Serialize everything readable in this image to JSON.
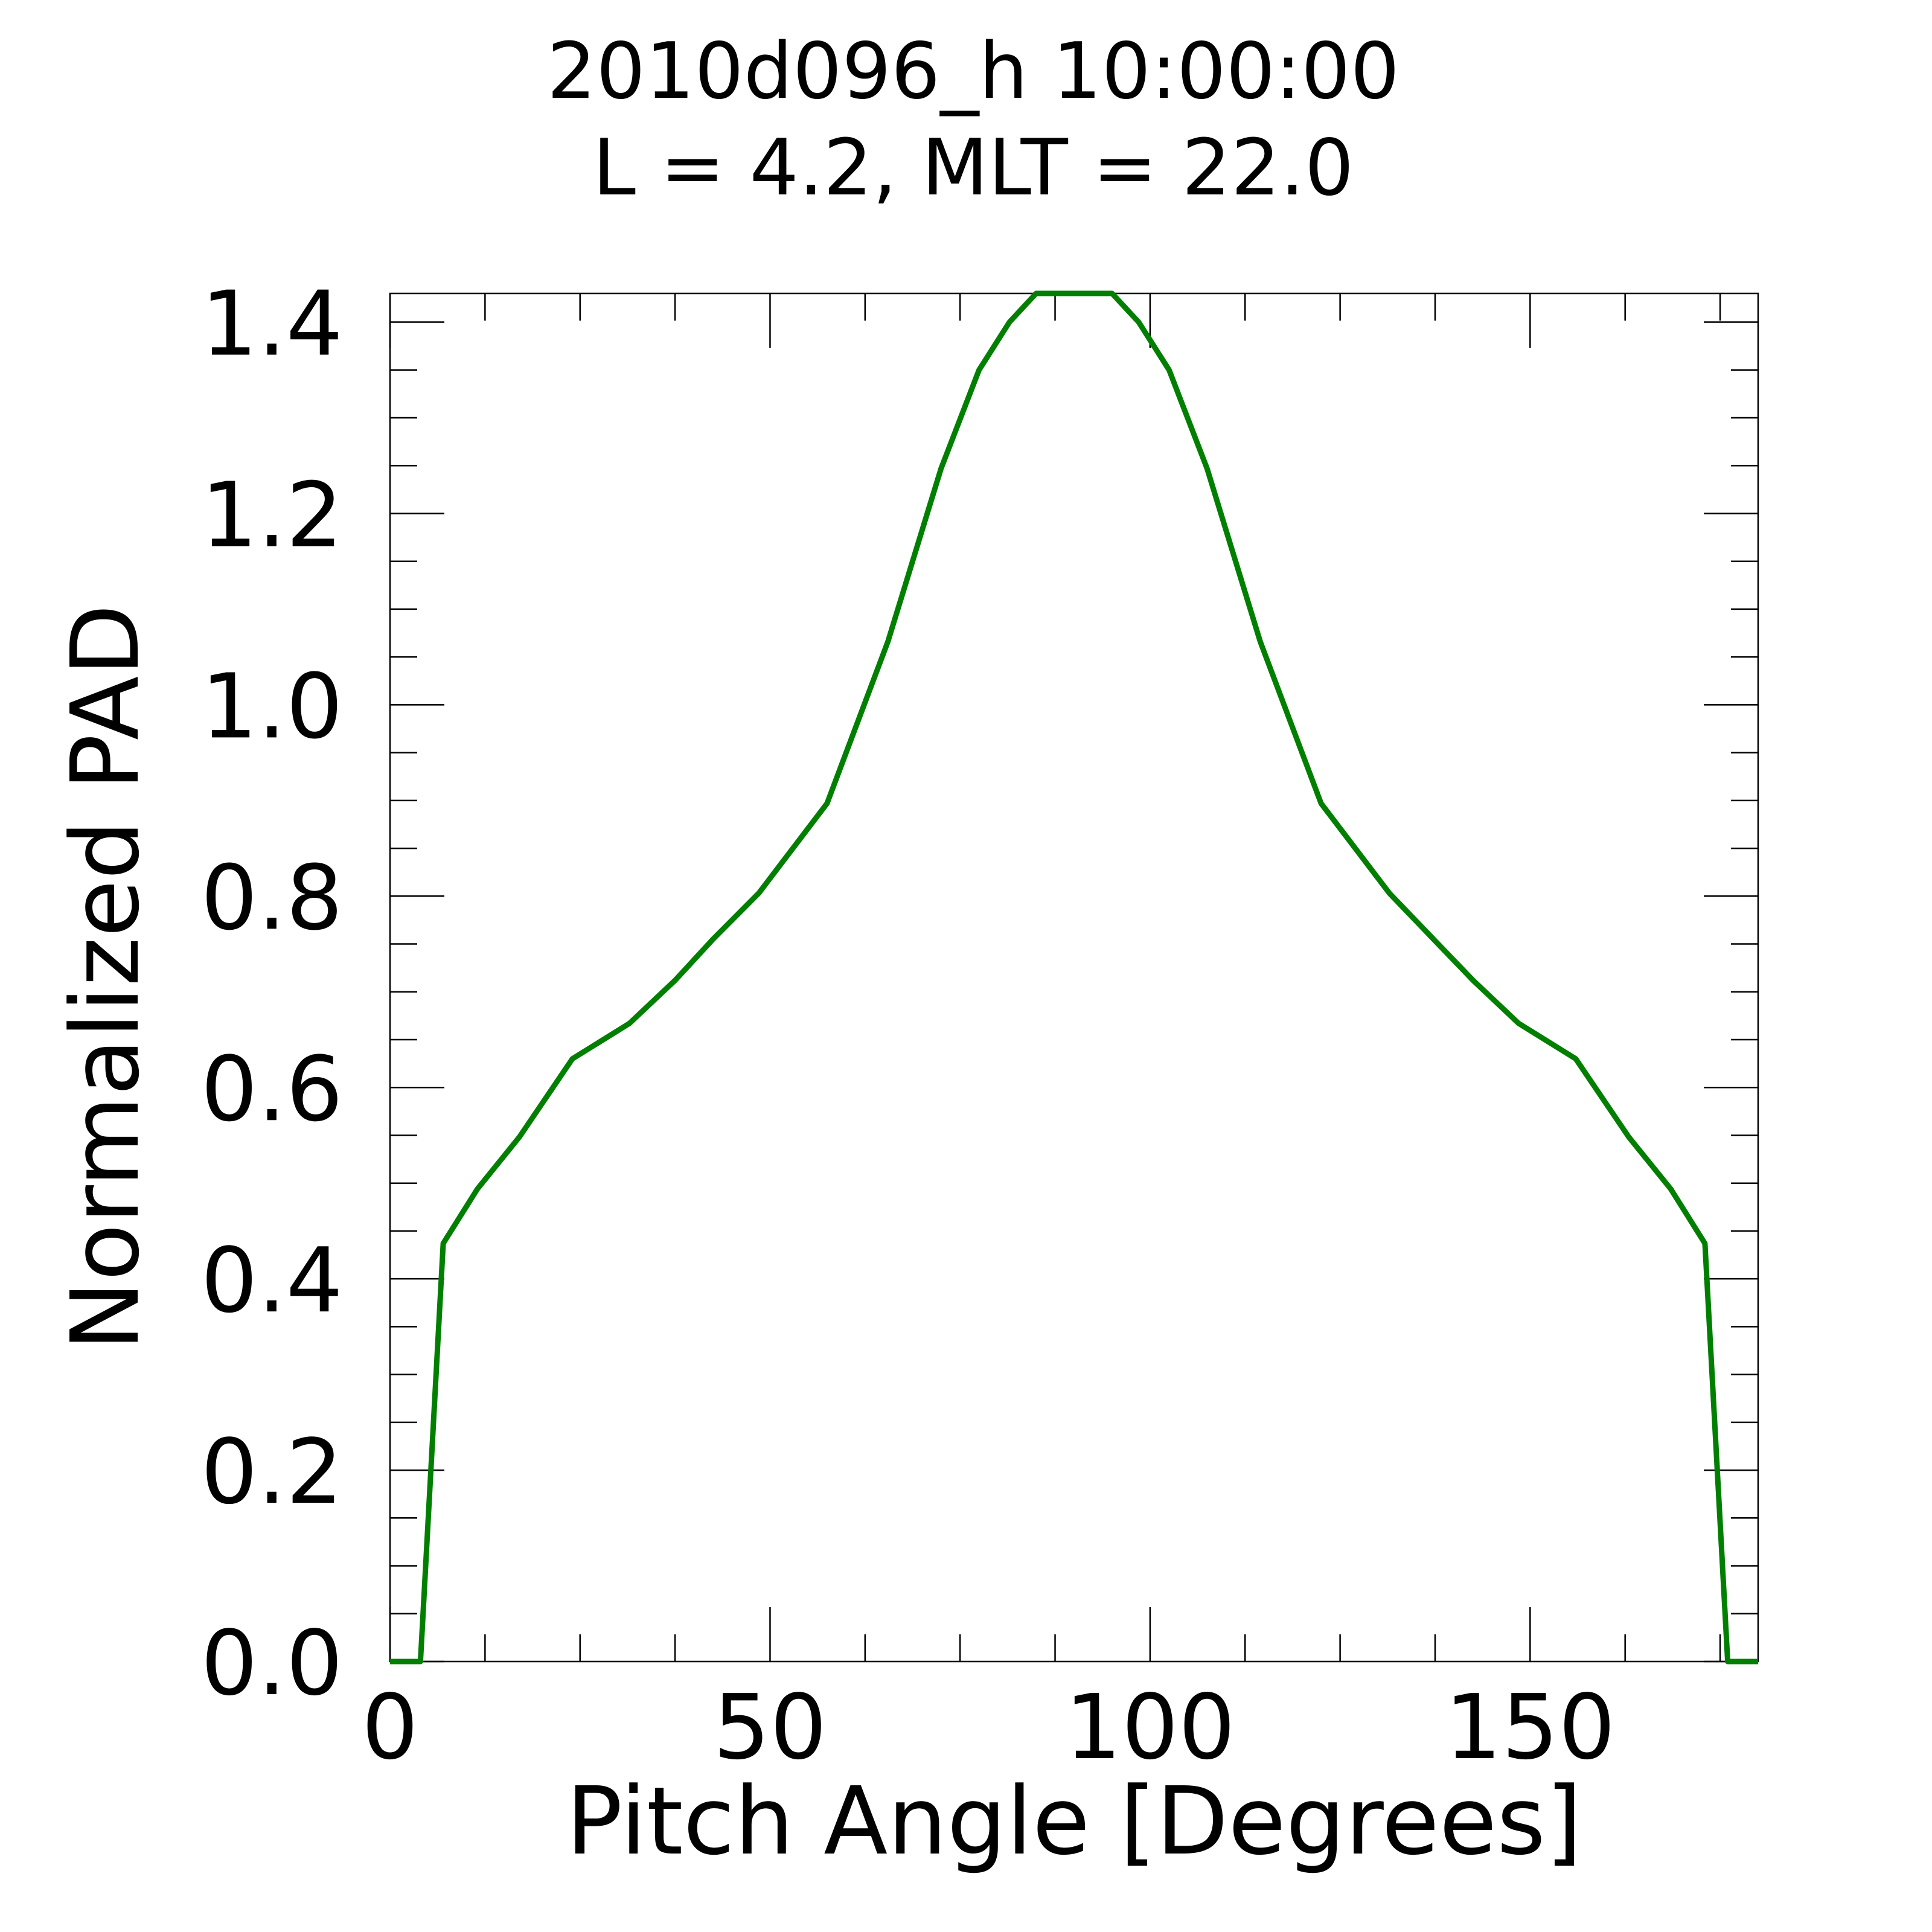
{
  "chart_data": {
    "type": "line",
    "title": "2010d096_h  10:00:00",
    "subtitle": "L = 4.2, MLT = 22.0",
    "xlabel": "Pitch Angle [Degrees]",
    "ylabel": "Normalized PAD",
    "xlim": [
      0,
      180
    ],
    "ylim": [
      0,
      1.43
    ],
    "xticks": [
      0,
      50,
      100,
      150
    ],
    "xtick_labels": [
      "0",
      "50",
      "100",
      "150"
    ],
    "yticks": [
      0.0,
      0.2,
      0.4,
      0.6,
      0.8,
      1.0,
      1.2,
      1.4
    ],
    "ytick_labels": [
      "0.0",
      "0.2",
      "0.4",
      "0.6",
      "0.8",
      "1.0",
      "1.2",
      "1.4"
    ],
    "grid": false,
    "line_color": "#007f00",
    "series": [
      {
        "x": [
          0,
          4,
          7,
          11.5,
          17,
          24,
          31.5,
          37.5,
          42.5,
          48.5,
          57.5,
          65.5,
          72.5,
          77.5,
          81.5,
          85,
          88.5,
          95,
          98.5,
          102.5,
          107.5,
          114.5,
          122.5,
          131.5,
          142.5,
          148.5,
          156,
          163,
          168.5,
          173,
          176,
          180
        ],
        "values": [
          0,
          0,
          0.437,
          0.494,
          0.548,
          0.63,
          0.667,
          0.712,
          0.755,
          0.803,
          0.897,
          1.066,
          1.247,
          1.35,
          1.4,
          1.43,
          1.43,
          1.43,
          1.4,
          1.35,
          1.247,
          1.066,
          0.897,
          0.803,
          0.712,
          0.667,
          0.63,
          0.548,
          0.494,
          0.437,
          0,
          0
        ]
      }
    ]
  }
}
